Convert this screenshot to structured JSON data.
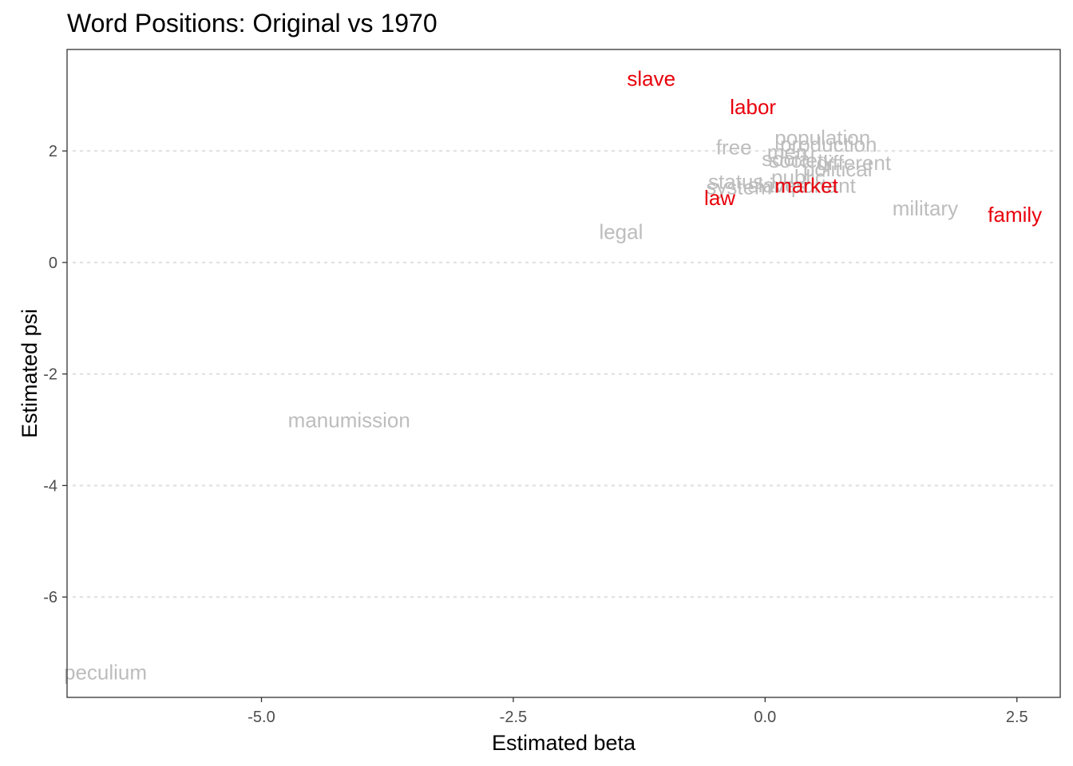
{
  "colors": {
    "highlight": "#e8000b",
    "muted": "#bdbdbd",
    "grid": "#e3e3e3",
    "axis": "#333333"
  },
  "chart_data": {
    "type": "scatter",
    "title": "Word Positions: Original vs 1970",
    "xlabel": "Estimated beta",
    "ylabel": "Estimated psi",
    "xlim": [
      -6.93,
      2.93
    ],
    "ylim": [
      -7.8,
      3.82
    ],
    "xticks": [
      -5.0,
      -2.5,
      0.0,
      2.5
    ],
    "xtick_labels": [
      "-5.0",
      "-2.5",
      "0.0",
      "2.5"
    ],
    "yticks": [
      -6,
      -4,
      -2,
      0,
      2
    ],
    "ytick_labels": [
      "-6",
      "-4",
      "-2",
      "0",
      "2"
    ],
    "grid": "horizontal-dotted",
    "points": [
      {
        "label": "peculium",
        "x": -6.85,
        "y": -7.35,
        "highlight": false
      },
      {
        "label": "manumission",
        "x": -4.13,
        "y": -2.83,
        "highlight": false
      },
      {
        "label": "legal",
        "x": -1.43,
        "y": 0.55,
        "highlight": false
      },
      {
        "label": "military",
        "x": 1.59,
        "y": 0.97,
        "highlight": false
      },
      {
        "label": "free",
        "x": -0.31,
        "y": 2.07,
        "highlight": false
      },
      {
        "label": "population",
        "x": 0.57,
        "y": 2.24,
        "highlight": false
      },
      {
        "label": "production",
        "x": 0.63,
        "y": 2.12,
        "highlight": false
      },
      {
        "label": "men",
        "x": 0.22,
        "y": 1.98,
        "highlight": false
      },
      {
        "label": "social",
        "x": 0.23,
        "y": 1.86,
        "highlight": false
      },
      {
        "label": "society",
        "x": 0.36,
        "y": 1.83,
        "highlight": false
      },
      {
        "label": "different",
        "x": 0.88,
        "y": 1.79,
        "highlight": false
      },
      {
        "label": "political",
        "x": 0.72,
        "y": 1.67,
        "highlight": false
      },
      {
        "label": "public",
        "x": 0.33,
        "y": 1.53,
        "highlight": false
      },
      {
        "label": "status",
        "x": -0.29,
        "y": 1.45,
        "highlight": false
      },
      {
        "label": "system",
        "x": -0.26,
        "y": 1.35,
        "highlight": false
      },
      {
        "label": "slaves",
        "x": 0.12,
        "y": 1.39,
        "highlight": false
      },
      {
        "label": "important",
        "x": 0.47,
        "y": 1.38,
        "highlight": false
      },
      {
        "label": "slave",
        "x": -1.13,
        "y": 3.3,
        "highlight": true
      },
      {
        "label": "labor",
        "x": -0.12,
        "y": 2.79,
        "highlight": true
      },
      {
        "label": "law",
        "x": -0.45,
        "y": 1.16,
        "highlight": true
      },
      {
        "label": "market",
        "x": 0.41,
        "y": 1.38,
        "highlight": true
      },
      {
        "label": "family",
        "x": 2.48,
        "y": 0.86,
        "highlight": true
      }
    ]
  }
}
